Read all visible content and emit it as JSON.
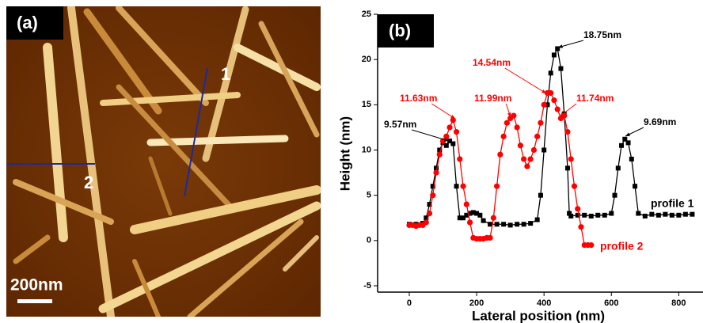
{
  "image_panel": {
    "label": "(a)",
    "line_labels": [
      "1",
      "2"
    ],
    "scale_bar": "200nm"
  },
  "chart_data": {
    "type": "line",
    "panel_label": "(b)",
    "x_label": "Lateral position (nm)",
    "y_label": "Height (nm)",
    "xlim": [
      -94,
      872
    ],
    "ylim": [
      -5.7,
      25
    ],
    "xticks": [
      0,
      200,
      400,
      600,
      800
    ],
    "yticks": [
      -5,
      0,
      5,
      10,
      15,
      20,
      25
    ],
    "series": [
      {
        "name": "profile 1",
        "color": "#000000",
        "marker": "square",
        "x": [
          0,
          20,
          40,
          50,
          60,
          70,
          80,
          90,
          100,
          110,
          120,
          130,
          140,
          150,
          160,
          170,
          180,
          190,
          200,
          210,
          220,
          240,
          260,
          280,
          300,
          320,
          340,
          360,
          380,
          390,
          400,
          410,
          420,
          430,
          440,
          450,
          460,
          470,
          475,
          480,
          500,
          520,
          540,
          560,
          580,
          600,
          610,
          620,
          630,
          640,
          650,
          660,
          670,
          680,
          700,
          720,
          740,
          760,
          780,
          800,
          820,
          840
        ],
        "values": [
          1.8,
          1.8,
          1.9,
          2.5,
          4,
          6,
          8,
          10,
          10.8,
          10.5,
          11,
          10.7,
          6,
          2.5,
          2.5,
          2.8,
          3,
          3.1,
          3,
          2.8,
          2.2,
          1.8,
          1.8,
          1.8,
          1.7,
          1.8,
          1.8,
          1.9,
          2.3,
          5,
          10,
          15,
          18.5,
          20.5,
          21.2,
          19,
          14,
          8,
          3,
          2.7,
          2.8,
          2.8,
          2.7,
          2.8,
          2.8,
          3,
          5,
          8,
          10.5,
          11.2,
          10.8,
          9,
          6,
          3,
          2.7,
          2.9,
          2.8,
          2.9,
          2.8,
          2.8,
          2.9,
          2.9
        ]
      },
      {
        "name": "profile 2",
        "color": "#ff0000",
        "marker": "circle",
        "x": [
          0,
          10,
          20,
          30,
          40,
          50,
          60,
          70,
          80,
          90,
          100,
          110,
          120,
          130,
          140,
          150,
          160,
          170,
          180,
          190,
          200,
          210,
          220,
          230,
          240,
          250,
          260,
          270,
          280,
          290,
          300,
          310,
          320,
          330,
          340,
          350,
          360,
          370,
          380,
          390,
          400,
          410,
          420,
          430,
          440,
          450,
          460,
          470,
          480,
          490,
          500,
          510,
          520,
          530,
          540
        ],
        "values": [
          1.7,
          1.7,
          1.6,
          1.7,
          1.7,
          2,
          3,
          5,
          7.5,
          9.5,
          11,
          11.5,
          12.5,
          13.3,
          12,
          9,
          6,
          4,
          2,
          0.3,
          0.2,
          0.2,
          0.2,
          0.3,
          0.3,
          2.5,
          6,
          9.5,
          11.5,
          13,
          13.5,
          13.8,
          12.5,
          10.5,
          9,
          8.2,
          9,
          10,
          11.5,
          13,
          15,
          16.3,
          16.3,
          15.5,
          14.5,
          13.5,
          13.8,
          12,
          9,
          6,
          3.5,
          1.5,
          -0.5,
          -0.5,
          -0.5
        ]
      }
    ],
    "annotations": [
      {
        "text": "9.57nm",
        "color": "#000000"
      },
      {
        "text": "11.63nm",
        "color": "#ff0000"
      },
      {
        "text": "11.99nm",
        "color": "#ff0000"
      },
      {
        "text": "14.54nm",
        "color": "#ff0000"
      },
      {
        "text": "11.74nm",
        "color": "#ff0000"
      },
      {
        "text": "18.75nm",
        "color": "#000000"
      },
      {
        "text": "9.69nm",
        "color": "#000000"
      }
    ]
  }
}
